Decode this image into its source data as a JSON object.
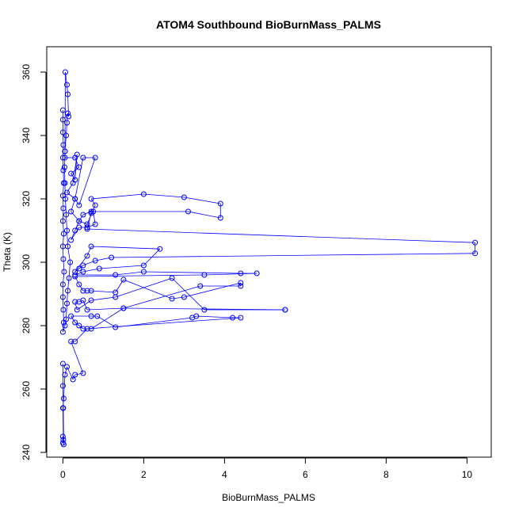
{
  "chart_data": {
    "type": "line",
    "title": "ATOM4 Southbound BioBurnMass_PALMS",
    "xlabel": "BioBurnMass_PALMS",
    "ylabel": "Theta (K)",
    "xlim": [
      -0.4,
      10.6
    ],
    "ylim": [
      238.5,
      368
    ],
    "xticks": [
      0,
      2,
      4,
      6,
      8,
      10
    ],
    "yticks": [
      240,
      260,
      280,
      300,
      320,
      340,
      360
    ],
    "grid": false,
    "series_color": "#0000ff",
    "markers": "open-circle",
    "series": [
      {
        "x": [
          0.0,
          0.0,
          0.0,
          0.01,
          0.0,
          0.01,
          0.02,
          0.0,
          0.01,
          0.0,
          0.02,
          0.0,
          0.01,
          0.03,
          0.0,
          0.0,
          0.01,
          0.02,
          0.0,
          0.05,
          0.08,
          0.1,
          0.12,
          0.15,
          0.18,
          0.12,
          0.1,
          0.08,
          0.06,
          0.05,
          0.04,
          0.05,
          0.08,
          0.1,
          0.12,
          0.14,
          0.12,
          0.1,
          0.06,
          0.05,
          0.05,
          0.3,
          0.4,
          0.2,
          0.3,
          0.35,
          0.25,
          0.1,
          0.3,
          0.4,
          0.8,
          0.5,
          0.3,
          0.2,
          0.4,
          0.6,
          0.8,
          0.7,
          2.0,
          3.0,
          3.9,
          3.9,
          3.1,
          0.7,
          0.5,
          0.4,
          0.3,
          0.2,
          0.4,
          0.6,
          0.8,
          0.75,
          0.7,
          0.6,
          10.2,
          10.2,
          1.2,
          0.8,
          0.5,
          0.4,
          0.3,
          0.6,
          0.7,
          2.4,
          2.0,
          0.9,
          0.5,
          0.3,
          1.3,
          2.0,
          4.4,
          4.8,
          3.5,
          0.3,
          0.4,
          0.5,
          0.6,
          0.7,
          1.3,
          1.5,
          2.7,
          3.0,
          4.4,
          4.4,
          3.4,
          1.5,
          0.6,
          0.5,
          0.4,
          0.3,
          0.35,
          0.7,
          1.3,
          2.7,
          3.5,
          5.5,
          5.5,
          1.5,
          0.7,
          0.5,
          0.4,
          0.3,
          0.2,
          0.7,
          0.85,
          1.3,
          3.2,
          3.3,
          4.2,
          4.4,
          0.6,
          0.3,
          0.2,
          0.5,
          0.3,
          0.25,
          0.1,
          0.05,
          0.02,
          0.0,
          0.01,
          0.0,
          0.0,
          0.02,
          0.01,
          0.0,
          0.0
        ],
        "y": [
          348,
          345,
          341,
          337,
          333,
          329,
          325,
          321,
          317,
          313,
          309,
          305,
          301,
          297,
          293,
          289,
          285,
          281,
          278,
          280,
          282,
          287,
          291,
          295,
          300,
          305,
          310,
          315,
          320,
          325,
          330,
          335,
          340,
          344,
          347,
          346,
          353,
          356,
          360,
          335,
          333,
          333,
          330,
          328,
          326,
          334,
          325,
          322,
          320,
          318,
          333,
          333,
          320,
          316,
          313,
          312,
          318,
          320,
          321.5,
          320.5,
          318.5,
          314,
          316,
          316,
          315,
          313,
          310,
          307,
          311,
          311,
          312,
          316,
          315.5,
          310.5,
          306.2,
          302.8,
          301.5,
          300.5,
          299,
          298,
          297,
          302,
          305,
          304.2,
          299,
          298,
          297,
          296,
          296,
          297,
          296.5,
          296.5,
          296,
          295.5,
          293,
          291,
          291,
          291,
          290.5,
          294.5,
          288.5,
          289,
          293.5,
          292.5,
          292.5,
          285.5,
          285,
          288,
          287.5,
          287.5,
          285,
          288,
          289,
          295,
          285,
          285,
          285,
          285.5,
          279,
          279,
          280,
          281,
          283,
          283,
          283,
          279.5,
          282.5,
          283,
          282.5,
          282.5,
          279,
          275,
          275,
          265,
          264.5,
          263,
          267,
          264.5,
          257,
          254,
          244,
          243,
          245,
          242.5,
          254,
          261,
          268
        ]
      }
    ]
  }
}
